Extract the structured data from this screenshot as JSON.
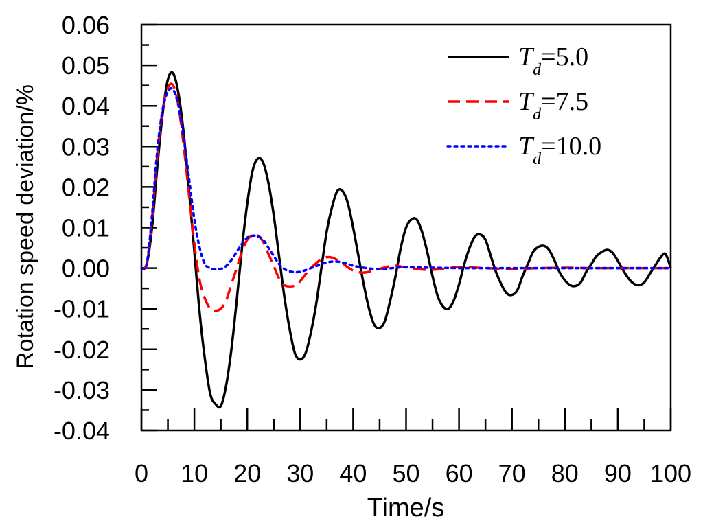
{
  "chart_data": {
    "type": "line",
    "title": "",
    "xlabel": "Time/s",
    "ylabel": "Rotation speed deviation/%",
    "xlim": [
      0,
      100
    ],
    "ylim": [
      -0.04,
      0.06
    ],
    "xticks": [
      0,
      10,
      20,
      30,
      40,
      50,
      60,
      70,
      80,
      90,
      100
    ],
    "xtick_labels": [
      "0",
      "10",
      "20",
      "30",
      "40",
      "50",
      "60",
      "70",
      "80",
      "90",
      "100"
    ],
    "yticks": [
      -0.04,
      -0.03,
      -0.02,
      -0.01,
      0.0,
      0.01,
      0.02,
      0.03,
      0.04,
      0.05,
      0.06
    ],
    "ytick_labels": [
      "-0.04",
      "-0.03",
      "-0.02",
      "-0.01",
      "0.00",
      "0.01",
      "0.02",
      "0.03",
      "0.04",
      "0.05",
      "0.06"
    ],
    "grid": false,
    "legend_position": "top-right",
    "series": [
      {
        "name": "Td=5.0",
        "legend_main": "T",
        "legend_sub": "d",
        "legend_value": "=5.0",
        "color": "#000000",
        "style": "solid",
        "x": [
          0,
          1,
          2,
          3,
          4,
          5,
          6,
          7,
          8,
          9,
          10,
          11,
          12,
          13,
          14,
          15,
          16,
          17,
          18,
          19,
          20,
          21,
          22,
          23,
          24,
          25,
          26,
          27,
          28,
          29,
          30,
          31,
          32,
          33,
          34,
          35,
          36,
          37,
          38,
          39,
          40,
          41,
          42,
          43,
          44,
          45,
          46,
          47,
          48,
          49,
          50,
          51,
          52,
          53,
          54,
          55,
          56,
          57,
          58,
          59,
          60,
          61,
          62,
          63,
          64,
          65,
          66,
          67,
          68,
          69,
          70,
          71,
          72,
          73,
          74,
          75,
          76,
          77,
          78,
          79,
          80,
          81,
          82,
          83,
          84,
          85,
          86,
          87,
          88,
          89,
          90,
          91,
          92,
          93,
          94,
          95,
          96,
          97,
          98,
          99,
          100
        ],
        "y": [
          0.0,
          0.001,
          0.01,
          0.025,
          0.038,
          0.0465,
          0.048,
          0.043,
          0.033,
          0.019,
          0.004,
          -0.011,
          -0.0225,
          -0.031,
          -0.0335,
          -0.034,
          -0.029,
          -0.02,
          -0.008,
          0.005,
          0.016,
          0.024,
          0.027,
          0.026,
          0.021,
          0.013,
          0.003,
          -0.007,
          -0.015,
          -0.021,
          -0.0225,
          -0.021,
          -0.016,
          -0.009,
          0.0,
          0.009,
          0.015,
          0.019,
          0.019,
          0.016,
          0.01,
          0.003,
          -0.004,
          -0.01,
          -0.014,
          -0.0148,
          -0.013,
          -0.008,
          -0.002,
          0.005,
          0.01,
          0.012,
          0.012,
          0.009,
          0.004,
          -0.002,
          -0.007,
          -0.0095,
          -0.01,
          -0.008,
          -0.004,
          0.001,
          0.005,
          0.0078,
          0.0083,
          0.007,
          0.003,
          -0.001,
          -0.004,
          -0.0062,
          -0.0066,
          -0.0055,
          -0.002,
          0.001,
          0.004,
          0.0052,
          0.0055,
          0.0045,
          0.002,
          -0.001,
          -0.003,
          -0.0042,
          -0.0044,
          -0.0035,
          -0.001,
          0.001,
          0.003,
          0.004,
          0.0045,
          0.0038,
          0.0018,
          -0.0005,
          -0.0025,
          -0.0038,
          -0.0042,
          -0.0035,
          -0.0015,
          0.0005,
          0.0025,
          0.0035,
          0.0
        ]
      },
      {
        "name": "Td=7.5",
        "legend_main": "T",
        "legend_sub": "d",
        "legend_value": "=7.5",
        "color": "#ff0000",
        "style": "dashed",
        "x": [
          0,
          1,
          2,
          3,
          4,
          5,
          6,
          7,
          8,
          9,
          10,
          11,
          12,
          13,
          14,
          15,
          16,
          17,
          18,
          19,
          20,
          21,
          22,
          23,
          24,
          25,
          26,
          27,
          28,
          29,
          30,
          31,
          32,
          33,
          34,
          35,
          36,
          37,
          38,
          39,
          40,
          41,
          42,
          43,
          44,
          45,
          46,
          47,
          48,
          49,
          50,
          52,
          54,
          56,
          58,
          60,
          62,
          65,
          70,
          75,
          80,
          85,
          90,
          95,
          100
        ],
        "y": [
          0.0,
          0.001,
          0.012,
          0.028,
          0.039,
          0.0445,
          0.045,
          0.04,
          0.03,
          0.018,
          0.006,
          -0.003,
          -0.0075,
          -0.01,
          -0.0105,
          -0.01,
          -0.008,
          -0.004,
          0.0,
          0.004,
          0.007,
          0.008,
          0.008,
          0.0065,
          0.0035,
          0.0005,
          -0.0025,
          -0.0042,
          -0.0045,
          -0.0043,
          -0.0032,
          -0.0015,
          0.0,
          0.0012,
          0.0022,
          0.0027,
          0.0026,
          0.002,
          0.0012,
          0.0002,
          -0.0006,
          -0.001,
          -0.0011,
          -0.0009,
          -0.0005,
          -0.0002,
          0.0002,
          0.0005,
          0.0006,
          0.0004,
          0.0002,
          -0.0002,
          -0.0004,
          -0.0003,
          0.0,
          0.0003,
          0.0002,
          0.0,
          -0.0002,
          0.0,
          0.0001,
          0.0,
          0.0,
          0.0,
          0.0
        ]
      },
      {
        "name": "Td=10.0",
        "legend_main": "T",
        "legend_sub": "d",
        "legend_value": "=10.0",
        "color": "#0000ff",
        "style": "dotted",
        "x": [
          0,
          1,
          2,
          3,
          4,
          5,
          6,
          7,
          8,
          9,
          10,
          11,
          12,
          13,
          14,
          15,
          16,
          17,
          18,
          19,
          20,
          21,
          22,
          23,
          24,
          25,
          26,
          27,
          28,
          29,
          30,
          31,
          32,
          33,
          34,
          35,
          36,
          37,
          38,
          39,
          40,
          42,
          44,
          46,
          48,
          50,
          55,
          60,
          65,
          70,
          80,
          90,
          100
        ],
        "y": [
          0.0,
          0.001,
          0.013,
          0.029,
          0.039,
          0.0435,
          0.044,
          0.04,
          0.032,
          0.022,
          0.012,
          0.005,
          0.001,
          0.0,
          -0.0003,
          -0.0002,
          0.0005,
          0.002,
          0.004,
          0.006,
          0.0075,
          0.008,
          0.0078,
          0.007,
          0.005,
          0.003,
          0.001,
          -0.0002,
          -0.0008,
          -0.001,
          -0.0009,
          -0.0005,
          0.0,
          0.0005,
          0.001,
          0.0014,
          0.0016,
          0.0016,
          0.0014,
          0.001,
          0.0006,
          0.0001,
          -0.0002,
          -0.0002,
          0.0001,
          0.0002,
          0.0001,
          0.0,
          0.0,
          0.0,
          0.0,
          0.0,
          0.0
        ]
      }
    ]
  }
}
